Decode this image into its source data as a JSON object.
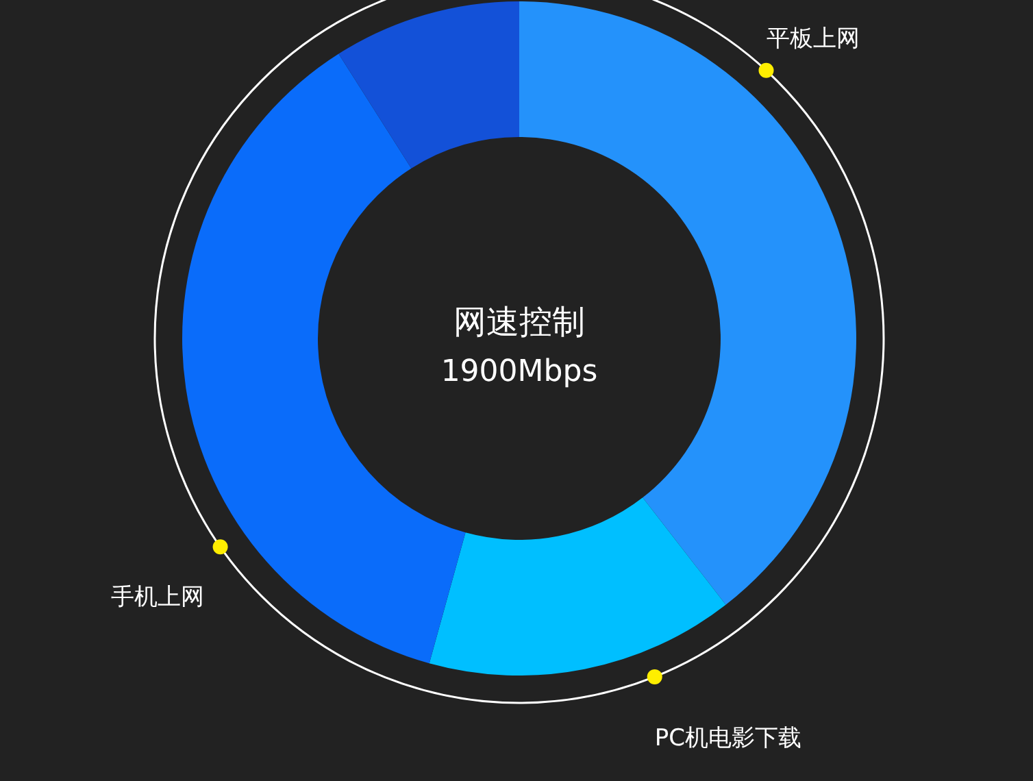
{
  "chart_data": {
    "type": "donut",
    "title": "网速控制",
    "subtitle": "1900Mbps",
    "categories": [
      "平板上网",
      "PC机电影下载",
      "手机上网",
      null
    ],
    "values": [
      39.5,
      14.8,
      36.7,
      9.0
    ],
    "colors": [
      "#2492fb",
      "#00bfff",
      "#0a6cfa",
      "#1351d8"
    ],
    "legend": false
  }
}
